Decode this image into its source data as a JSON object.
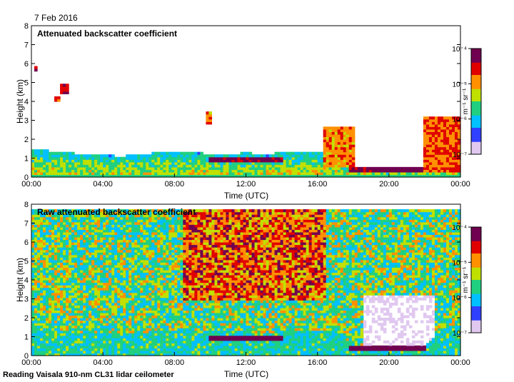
{
  "date_label": "7 Feb 2016",
  "footer": "Reading Vaisala 910-nm CL31 lidar ceilometer",
  "colormap": [
    "#e0c8f0",
    "#3040ff",
    "#00c0ff",
    "#20d080",
    "#c0e000",
    "#ff9000",
    "#e00000",
    "#700050"
  ],
  "chart_data": [
    {
      "type": "heatmap",
      "title": "Attenuated backscatter coefficient",
      "xlabel": "Time (UTC)",
      "ylabel": "Height (km)",
      "xlim": [
        0,
        24
      ],
      "ylim": [
        0,
        8
      ],
      "x_ticks": [
        "00:00",
        "04:00",
        "08:00",
        "12:00",
        "16:00",
        "20:00",
        "00:00"
      ],
      "y_ticks": [
        "0",
        "1",
        "2",
        "3",
        "4",
        "5",
        "6",
        "7",
        "8"
      ],
      "colorbar": {
        "label": "m⁻¹ sr⁻¹",
        "ticks": [
          "10⁻⁴",
          "10⁻⁵",
          "10⁻⁶",
          "10⁻⁷"
        ],
        "log_range": [
          -7,
          -4
        ]
      },
      "boundary_layer_top_km": [
        [
          0,
          1.5
        ],
        [
          1,
          1.4
        ],
        [
          2,
          1.3
        ],
        [
          3,
          1.2
        ],
        [
          4,
          1.2
        ],
        [
          5,
          1.1
        ],
        [
          6,
          1.2
        ],
        [
          7,
          1.3
        ],
        [
          8,
          1.3
        ],
        [
          9,
          1.4
        ],
        [
          10,
          1.2
        ],
        [
          11,
          1.2
        ],
        [
          12,
          1.3
        ],
        [
          13,
          1.2
        ],
        [
          14,
          1.3
        ],
        [
          15,
          1.3
        ],
        [
          16,
          1.4
        ],
        [
          17,
          1.3
        ],
        [
          18,
          0.6
        ],
        [
          19,
          0.5
        ],
        [
          20,
          0.4
        ],
        [
          21,
          0.4
        ],
        [
          22,
          0.5
        ],
        [
          23,
          1.5
        ],
        [
          24,
          1.5
        ]
      ],
      "cloud_features": [
        {
          "t0": 0.1,
          "t1": 0.35,
          "z0": 5.6,
          "z1": 5.9,
          "level": 0.9
        },
        {
          "t0": 1.3,
          "t1": 1.6,
          "z0": 4.0,
          "z1": 4.2,
          "level": 0.8
        },
        {
          "t0": 1.6,
          "t1": 2.1,
          "z0": 4.4,
          "z1": 4.9,
          "level": 0.85
        },
        {
          "t0": 9.7,
          "t1": 10.1,
          "z0": 2.8,
          "z1": 3.4,
          "level": 0.7
        },
        {
          "t0": 10.0,
          "t1": 14.0,
          "z0": 0.75,
          "z1": 1.05,
          "level": 0.95
        },
        {
          "t0": 16.3,
          "t1": 18.0,
          "z0": 0.5,
          "z1": 2.6,
          "level": 0.7
        },
        {
          "t0": 17.8,
          "t1": 22.0,
          "z0": 0.3,
          "z1": 0.55,
          "level": 0.95
        },
        {
          "t0": 22.0,
          "t1": 24.0,
          "z0": 0.3,
          "z1": 3.2,
          "level": 0.75
        }
      ]
    },
    {
      "type": "heatmap",
      "title": "Raw attenuated backscatter coefficient",
      "xlabel": "Time (UTC)",
      "ylabel": "Height (km)",
      "xlim": [
        0,
        24
      ],
      "ylim": [
        0,
        8
      ],
      "x_ticks": [
        "00:00",
        "04:00",
        "08:00",
        "12:00",
        "16:00",
        "20:00",
        "00:00"
      ],
      "y_ticks": [
        "0",
        "1",
        "2",
        "3",
        "4",
        "5",
        "6",
        "7",
        "8"
      ],
      "colorbar": {
        "label": "m⁻¹ sr⁻¹",
        "ticks": [
          "10⁻⁴",
          "10⁻⁵",
          "10⁻⁶",
          "10⁻⁷"
        ],
        "log_range": [
          -7,
          -4
        ]
      },
      "noise_floor_top_km": 7.7,
      "clear_region": {
        "t0": 18.5,
        "t1": 22.5,
        "z0": 0.6,
        "z1": 3.2
      },
      "high_noise_region": {
        "t0": 8.5,
        "t1": 16.5,
        "z0": 3.0,
        "z1": 7.7
      }
    }
  ]
}
